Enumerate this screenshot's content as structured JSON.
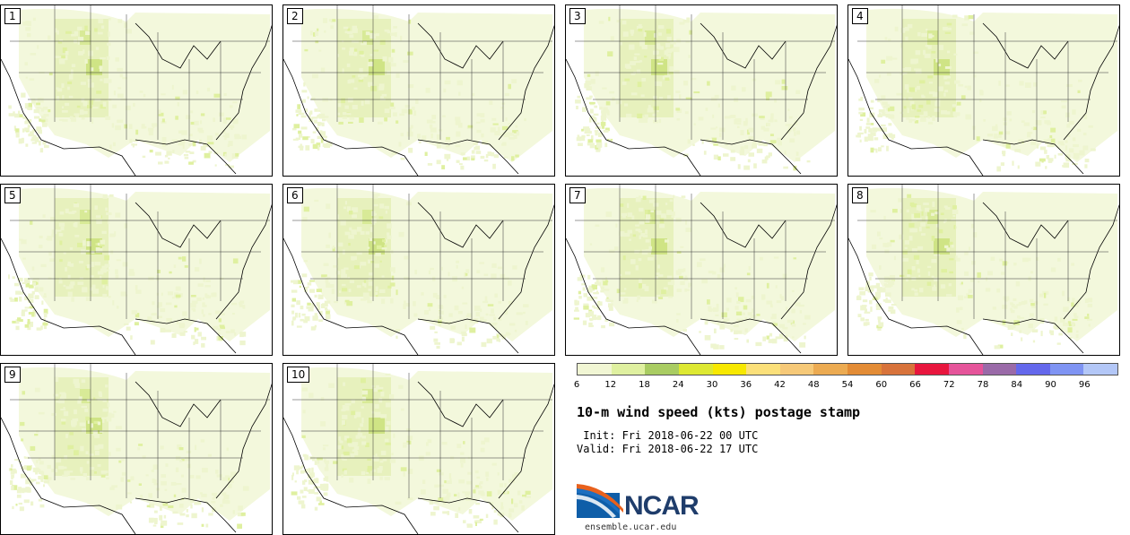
{
  "panels": [
    {
      "label": "1"
    },
    {
      "label": "2"
    },
    {
      "label": "3"
    },
    {
      "label": "4"
    },
    {
      "label": "5"
    },
    {
      "label": "6"
    },
    {
      "label": "7"
    },
    {
      "label": "8"
    },
    {
      "label": "9"
    },
    {
      "label": "10"
    }
  ],
  "colorbar": {
    "colors": [
      "#f1f6d4",
      "#dff0a0",
      "#a9cc62",
      "#dde832",
      "#f7e800",
      "#fbe07a",
      "#f6c978",
      "#ecab52",
      "#e38c36",
      "#d8733b",
      "#e8163e",
      "#e5549a",
      "#9a6aa8",
      "#6468ec",
      "#7f94f3",
      "#b3c7f7"
    ],
    "ticks": [
      "6",
      "12",
      "18",
      "24",
      "30",
      "36",
      "42",
      "48",
      "54",
      "60",
      "66",
      "72",
      "78",
      "84",
      "90",
      "96"
    ]
  },
  "title": "10-m wind speed (kts) postage stamp",
  "init_text": " Init: Fri 2018-06-22 00 UTC",
  "valid_text": "Valid: Fri 2018-06-22 17 UTC",
  "logo": {
    "text": "NCAR",
    "website": "ensemble.ucar.edu"
  }
}
